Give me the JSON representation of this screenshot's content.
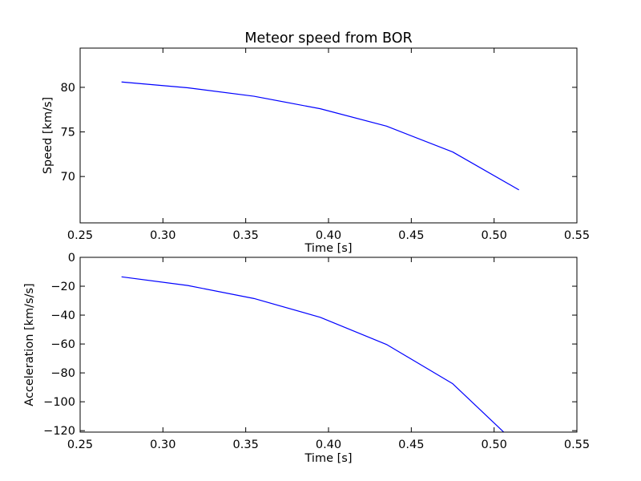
{
  "chart_data": [
    {
      "type": "line",
      "title": "Meteor speed from  BOR",
      "xlabel": "Time [s]",
      "ylabel": "Speed [km/s]",
      "xlim": [
        0.25,
        0.55
      ],
      "ylim": [
        64.8,
        84.4
      ],
      "xticks": [
        0.25,
        0.3,
        0.35,
        0.4,
        0.45,
        0.5,
        0.55
      ],
      "xtick_labels": [
        "0.25",
        "0.30",
        "0.35",
        "0.40",
        "0.45",
        "0.50",
        "0.55"
      ],
      "yticks": [
        70,
        75,
        80
      ],
      "ytick_labels": [
        "70",
        "75",
        "80"
      ],
      "grid": false,
      "series": [
        {
          "color": "#0000ff",
          "x": [
            0.275,
            0.315,
            0.355,
            0.395,
            0.435,
            0.475,
            0.515
          ],
          "y": [
            80.6,
            79.95,
            79.0,
            77.6,
            75.65,
            72.75,
            68.5
          ]
        }
      ]
    },
    {
      "type": "line",
      "title": "",
      "xlabel": "Time [s]",
      "ylabel": "Acceleration [km/s/s]",
      "xlim": [
        0.25,
        0.55
      ],
      "ylim": [
        -121,
        0
      ],
      "xticks": [
        0.25,
        0.3,
        0.35,
        0.4,
        0.45,
        0.5,
        0.55
      ],
      "xtick_labels": [
        "0.25",
        "0.30",
        "0.35",
        "0.40",
        "0.45",
        "0.50",
        "0.55"
      ],
      "yticks": [
        0,
        -20,
        -40,
        -60,
        -80,
        -100,
        -120
      ],
      "ytick_labels": [
        "0",
        "−20",
        "−40",
        "−60",
        "−80",
        "−100",
        "−120"
      ],
      "grid": false,
      "series": [
        {
          "color": "#0000ff",
          "x": [
            0.275,
            0.315,
            0.355,
            0.395,
            0.435,
            0.475,
            0.515
          ],
          "y": [
            -13.5,
            -19.5,
            -28.5,
            -41.5,
            -60.3,
            -87.5,
            -131
          ]
        }
      ]
    }
  ]
}
